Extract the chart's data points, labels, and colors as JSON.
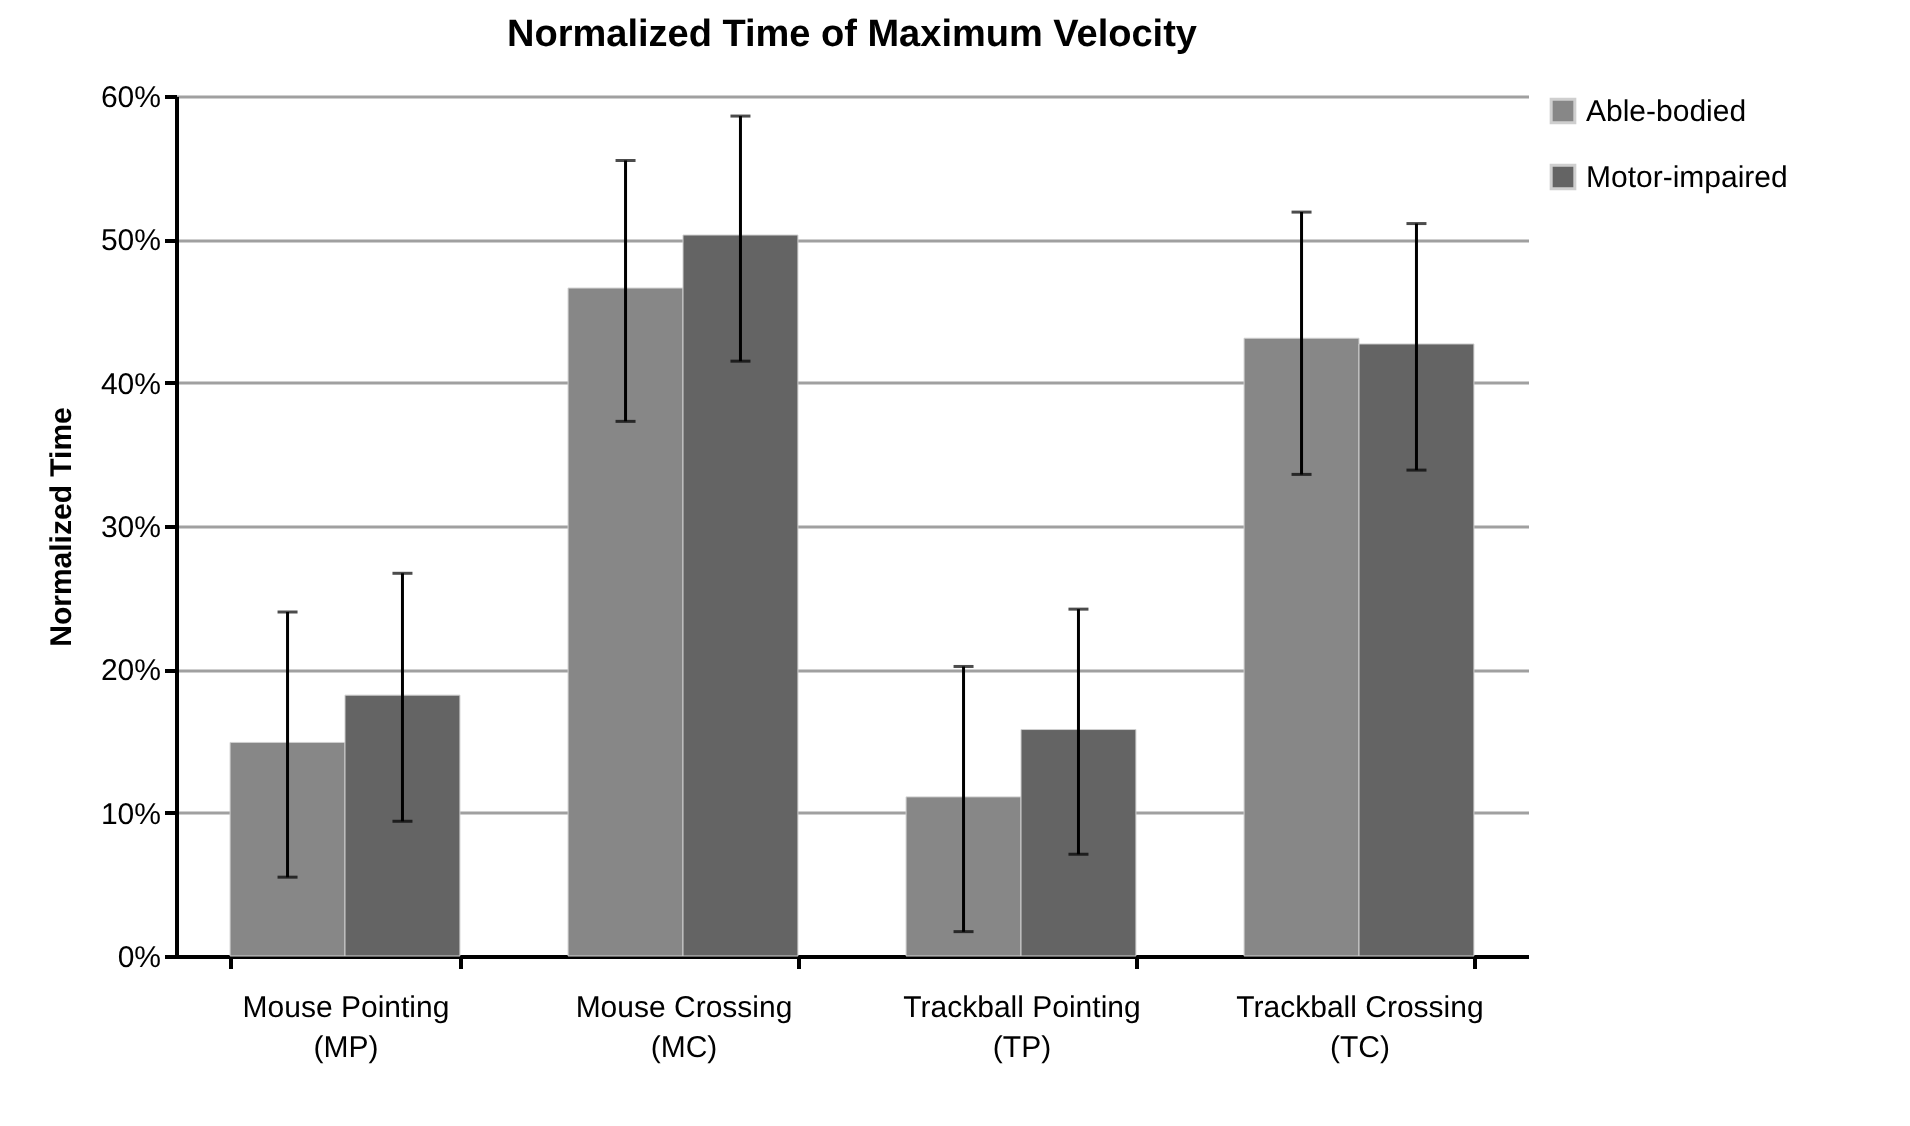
{
  "chart_data": {
    "type": "bar",
    "title": "Normalized Time of Maximum Velocity",
    "ylabel": "Normalized Time",
    "categories": [
      "Mouse Pointing (MP)",
      "Mouse Crossing (MC)",
      "Trackball Pointing (TP)",
      "Trackball Crossing (TC)"
    ],
    "series": [
      {
        "name": "Able-bodied",
        "color": "#878787",
        "values": [
          14.9,
          46.6,
          11.1,
          43.1
        ],
        "errors": [
          [
            5.5,
            24.0
          ],
          [
            37.3,
            55.5
          ],
          [
            1.7,
            20.2
          ],
          [
            33.6,
            51.9
          ]
        ]
      },
      {
        "name": "Motor-impaired",
        "color": "#646464",
        "values": [
          18.2,
          50.3,
          15.8,
          42.7
        ],
        "errors": [
          [
            9.4,
            26.7
          ],
          [
            41.5,
            58.6
          ],
          [
            7.1,
            24.2
          ],
          [
            33.9,
            51.1
          ]
        ]
      }
    ],
    "ylim": [
      0,
      60
    ],
    "yticks": [
      {
        "value": 0,
        "label": "0%"
      },
      {
        "value": 10,
        "label": "10%"
      },
      {
        "value": 20,
        "label": "20%"
      },
      {
        "value": 30,
        "label": "30%"
      },
      {
        "value": 40,
        "label": "40%"
      },
      {
        "value": 50,
        "label": "50%"
      },
      {
        "value": 60,
        "label": "60%"
      }
    ],
    "grid": "y",
    "legend": "right"
  }
}
